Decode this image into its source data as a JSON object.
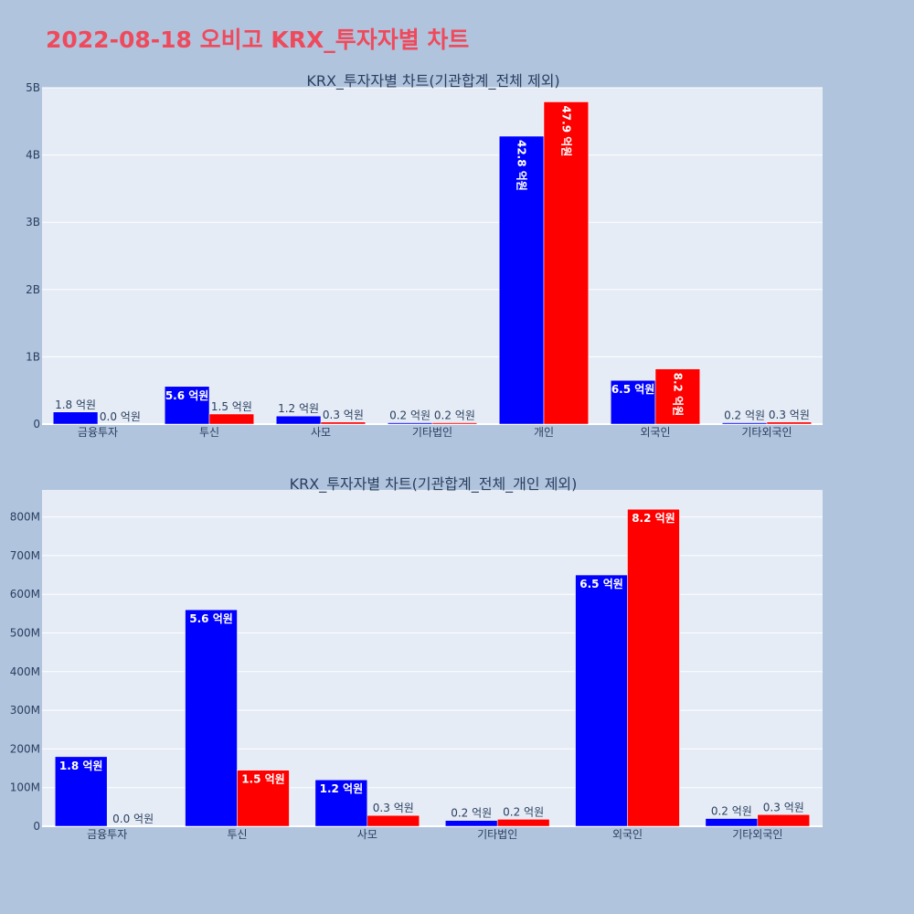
{
  "page_title": "2022-08-18 오비고 KRX_투자자별 차트",
  "colors": {
    "series_1": "#0000ff",
    "series_2": "#ff0000",
    "plot_bg": "#e5ecf6",
    "page_bg": "#b0c4de",
    "title": "#ef4a5c"
  },
  "chart_data": [
    {
      "type": "bar",
      "title": "KRX_투자자별 차트(기관합계_전체 제외)",
      "categories": [
        "금융투자",
        "투신",
        "사모",
        "기타법인",
        "개인",
        "외국인",
        "기타외국인"
      ],
      "series": [
        {
          "values": [
            180000000,
            560000000,
            120000000,
            20000000,
            4280000000,
            650000000,
            20000000
          ],
          "labels": [
            "1.8 억원",
            "5.6 억원",
            "1.2 억원",
            "0.2 억원",
            "42.8 억원",
            "6.5 억원",
            "0.2 억원"
          ]
        },
        {
          "values": [
            0,
            150000000,
            30000000,
            20000000,
            4790000000,
            820000000,
            30000000
          ],
          "labels": [
            "0.0 억원",
            "1.5 억원",
            "0.3 억원",
            "0.2 억원",
            "47.9 억원",
            "8.2 억원",
            "0.3 억원"
          ]
        }
      ],
      "yticks": [
        0,
        1000000000,
        2000000000,
        3000000000,
        4000000000,
        5000000000
      ],
      "ytick_labels": [
        "0",
        "1B",
        "2B",
        "3B",
        "4B",
        "5B"
      ],
      "ylim": [
        0,
        5000000000
      ],
      "grid": true
    },
    {
      "type": "bar",
      "title": "KRX_투자자별 차트(기관합계_전체_개인 제외)",
      "categories": [
        "금융투자",
        "투신",
        "사모",
        "기타법인",
        "외국인",
        "기타외국인"
      ],
      "series": [
        {
          "values": [
            180000000,
            560000000,
            120000000,
            15000000,
            650000000,
            20000000
          ],
          "labels": [
            "1.8 억원",
            "5.6 억원",
            "1.2 억원",
            "0.2 억원",
            "6.5 억원",
            "0.2 억원"
          ]
        },
        {
          "values": [
            0,
            145000000,
            28000000,
            18000000,
            820000000,
            30000000
          ],
          "labels": [
            "0.0 억원",
            "1.5 억원",
            "0.3 억원",
            "0.2 억원",
            "8.2 억원",
            "0.3 억원"
          ]
        }
      ],
      "yticks": [
        0,
        100000000,
        200000000,
        300000000,
        400000000,
        500000000,
        600000000,
        700000000,
        800000000
      ],
      "ytick_labels": [
        "0",
        "100M",
        "200M",
        "300M",
        "400M",
        "500M",
        "600M",
        "700M",
        "800M"
      ],
      "ylim": [
        0,
        870000000
      ],
      "grid": true
    }
  ]
}
